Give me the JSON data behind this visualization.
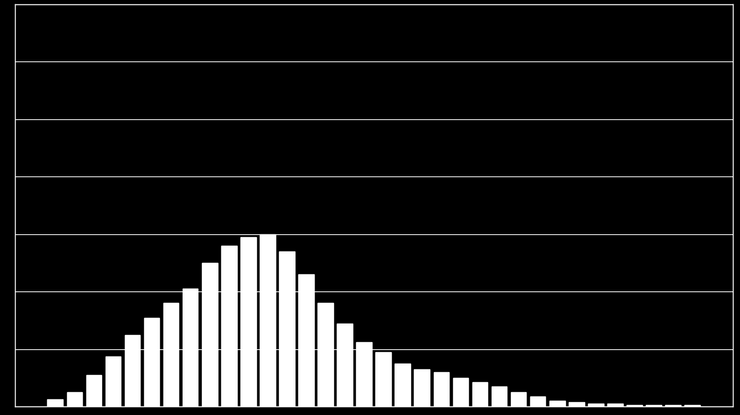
{
  "values": [
    5,
    10,
    22,
    35,
    50,
    62,
    72,
    82,
    100,
    112,
    118,
    120,
    108,
    92,
    72,
    58,
    45,
    38,
    30,
    26,
    24,
    20,
    17,
    14,
    10,
    7,
    4,
    3,
    2,
    2,
    1,
    1,
    1,
    1
  ],
  "bar_color": "#ffffff",
  "background_color": "#000000",
  "grid_color": "#ffffff",
  "ylim": [
    0,
    280
  ],
  "yticks": [
    0,
    40,
    80,
    120,
    160,
    200,
    240,
    280
  ],
  "figsize": [
    10.37,
    5.81
  ],
  "dpi": 100
}
